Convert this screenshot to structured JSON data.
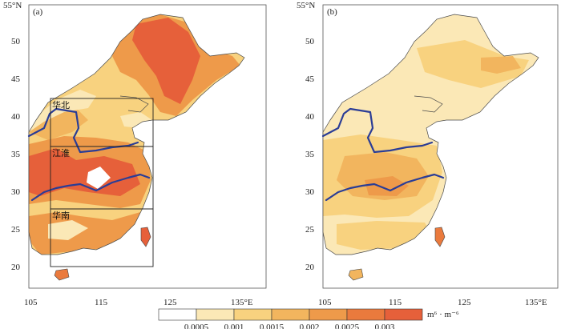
{
  "panels": [
    {
      "label": "(a)",
      "xticks": [
        "105",
        "115",
        "125",
        "135°E"
      ],
      "yticks": [
        "20",
        "25",
        "30",
        "35",
        "40",
        "45",
        "50",
        "55°N"
      ],
      "regions": [
        "华北",
        "江淮",
        "华南"
      ]
    },
    {
      "label": "(b)",
      "xticks": [
        "105",
        "115",
        "125",
        "135°E"
      ],
      "yticks": [
        "20",
        "25",
        "30",
        "35",
        "40",
        "45",
        "50",
        "55°N"
      ]
    }
  ],
  "colorbar": {
    "ticks": [
      "0.0005",
      "0.001",
      "0.0015",
      "0.002",
      "0.0025",
      "0.003"
    ],
    "unit": "m⁶ · m⁻⁶",
    "colors": [
      "#ffffff",
      "#fbe8b6",
      "#f8d27f",
      "#f2b55e",
      "#ee9a4a",
      "#ea7a3d",
      "#e6603a"
    ]
  }
}
